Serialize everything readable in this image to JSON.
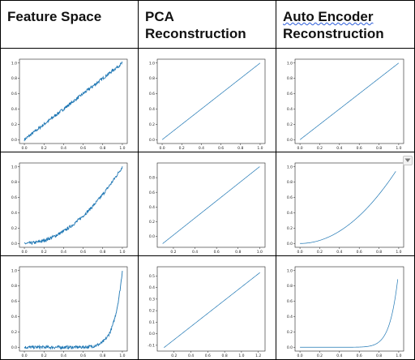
{
  "headers": {
    "feature_space": "Feature Space",
    "pca_line1": "PCA",
    "pca_line2": "Reconstruction",
    "ae_line1": "Auto Encoder",
    "ae_line2": "Reconstruction"
  },
  "chart_data": [
    {
      "id": "r0c0",
      "type": "line",
      "noise": true,
      "curve": "linear",
      "xlim": [
        -0.05,
        1.05
      ],
      "ylim": [
        -0.05,
        1.05
      ],
      "xticks": [
        "0.0",
        "0.2",
        "0.4",
        "0.6",
        "0.8",
        "1.0"
      ],
      "xtick_values": [
        0,
        0.2,
        0.4,
        0.6,
        0.8,
        1.0
      ],
      "yticks": [
        "0.0",
        "0.2",
        "0.4",
        "0.6",
        "0.8",
        "1.0"
      ],
      "ytick_values": [
        0,
        0.2,
        0.4,
        0.6,
        0.8,
        1.0
      ],
      "x_range": [
        0.0,
        1.0
      ]
    },
    {
      "id": "r0c1",
      "type": "line",
      "noise": false,
      "curve": "linear",
      "xlim": [
        -0.05,
        1.05
      ],
      "ylim": [
        -0.05,
        1.05
      ],
      "xticks": [
        "0.0",
        "0.2",
        "0.4",
        "0.6",
        "0.8",
        "1.0"
      ],
      "xtick_values": [
        0,
        0.2,
        0.4,
        0.6,
        0.8,
        1.0
      ],
      "yticks": [
        "0.0",
        "0.2",
        "0.4",
        "0.6",
        "0.8",
        "1.0"
      ],
      "ytick_values": [
        0,
        0.2,
        0.4,
        0.6,
        0.8,
        1.0
      ],
      "x_range": [
        0.0,
        1.0
      ]
    },
    {
      "id": "r0c2",
      "type": "line",
      "noise": false,
      "curve": "linear",
      "xlim": [
        -0.05,
        1.05
      ],
      "ylim": [
        -0.05,
        1.05
      ],
      "xticks": [
        "0.0",
        "0.2",
        "0.4",
        "0.6",
        "0.8",
        "1.0"
      ],
      "xtick_values": [
        0,
        0.2,
        0.4,
        0.6,
        0.8,
        1.0
      ],
      "yticks": [
        "0.0",
        "0.2",
        "0.4",
        "0.6",
        "0.8",
        "1.0"
      ],
      "ytick_values": [
        0,
        0.2,
        0.4,
        0.6,
        0.8,
        1.0
      ],
      "x_range": [
        0.0,
        1.0
      ]
    },
    {
      "id": "r1c0",
      "type": "line",
      "noise": true,
      "curve": "square",
      "xlim": [
        -0.05,
        1.05
      ],
      "ylim": [
        -0.05,
        1.05
      ],
      "xticks": [
        "0.0",
        "0.2",
        "0.4",
        "0.6",
        "0.8",
        "1.0"
      ],
      "xtick_values": [
        0,
        0.2,
        0.4,
        0.6,
        0.8,
        1.0
      ],
      "yticks": [
        "0.0",
        "0.2",
        "0.4",
        "0.6",
        "0.8",
        "1.0"
      ],
      "ytick_values": [
        0,
        0.2,
        0.4,
        0.6,
        0.8,
        1.0
      ],
      "x_range": [
        0.0,
        1.0
      ]
    },
    {
      "id": "r1c1",
      "type": "line",
      "noise": false,
      "curve": "pca_line",
      "xlim": [
        0.05,
        1.05
      ],
      "ylim": [
        -0.15,
        1.0
      ],
      "xticks": [
        "0.2",
        "0.4",
        "0.6",
        "0.8",
        "1.0"
      ],
      "xtick_values": [
        0.2,
        0.4,
        0.6,
        0.8,
        1.0
      ],
      "yticks": [
        "0.0",
        "0.2",
        "0.4",
        "0.6",
        "0.8"
      ],
      "ytick_values": [
        0,
        0.2,
        0.4,
        0.6,
        0.8
      ],
      "x_range": [
        0.1,
        1.0
      ],
      "line_y": [
        -0.1,
        0.95
      ]
    },
    {
      "id": "r1c2",
      "type": "line",
      "noise": false,
      "curve": "square",
      "xlim": [
        -0.05,
        1.05
      ],
      "ylim": [
        -0.05,
        1.05
      ],
      "xticks": [
        "0.0",
        "0.2",
        "0.4",
        "0.6",
        "0.8",
        "1.0"
      ],
      "xtick_values": [
        0,
        0.2,
        0.4,
        0.6,
        0.8,
        1.0
      ],
      "yticks": [
        "0.0",
        "0.2",
        "0.4",
        "0.6",
        "0.8",
        "1.0"
      ],
      "ytick_values": [
        0,
        0.2,
        0.4,
        0.6,
        0.8,
        1.0
      ],
      "x_range": [
        0.0,
        0.97
      ]
    },
    {
      "id": "r2c0",
      "type": "line",
      "noise": true,
      "curve": "exp",
      "xlim": [
        -0.05,
        1.05
      ],
      "ylim": [
        -0.05,
        1.05
      ],
      "xticks": [
        "0.0",
        "0.2",
        "0.4",
        "0.6",
        "0.8",
        "1.0"
      ],
      "xtick_values": [
        0,
        0.2,
        0.4,
        0.6,
        0.8,
        1.0
      ],
      "yticks": [
        "0.0",
        "0.2",
        "0.4",
        "0.6",
        "0.8",
        "1.0"
      ],
      "ytick_values": [
        0,
        0.2,
        0.4,
        0.6,
        0.8,
        1.0
      ],
      "x_range": [
        0.0,
        1.0
      ]
    },
    {
      "id": "r2c1",
      "type": "line",
      "noise": false,
      "curve": "pca_line",
      "xlim": [
        0.0,
        1.28
      ],
      "ylim": [
        -0.15,
        0.58
      ],
      "xticks": [
        "0.2",
        "0.4",
        "0.6",
        "0.8",
        "1.0",
        "1.2"
      ],
      "xtick_values": [
        0.2,
        0.4,
        0.6,
        0.8,
        1.0,
        1.2
      ],
      "yticks": [
        "-0.1",
        "0.0",
        "0.1",
        "0.2",
        "0.3",
        "0.4",
        "0.5"
      ],
      "ytick_values": [
        -0.1,
        0,
        0.1,
        0.2,
        0.3,
        0.4,
        0.5
      ],
      "x_range": [
        0.08,
        1.22
      ],
      "line_y": [
        -0.12,
        0.53
      ]
    },
    {
      "id": "r2c2",
      "type": "line",
      "noise": false,
      "curve": "exp",
      "xlim": [
        -0.05,
        1.05
      ],
      "ylim": [
        -0.05,
        1.05
      ],
      "xticks": [
        "0.0",
        "0.2",
        "0.4",
        "0.6",
        "0.8",
        "1.0"
      ],
      "xtick_values": [
        0,
        0.2,
        0.4,
        0.6,
        0.8,
        1.0
      ],
      "yticks": [
        "0.0",
        "0.2",
        "0.4",
        "0.6",
        "0.8",
        "1.0"
      ],
      "ytick_values": [
        0,
        0.2,
        0.4,
        0.6,
        0.8,
        1.0
      ],
      "x_range": [
        0.0,
        0.99
      ]
    }
  ],
  "colors": {
    "line": "#1f77b4",
    "axis": "#222222"
  },
  "icons": {
    "side_button": "dropdown-arrow-icon"
  }
}
